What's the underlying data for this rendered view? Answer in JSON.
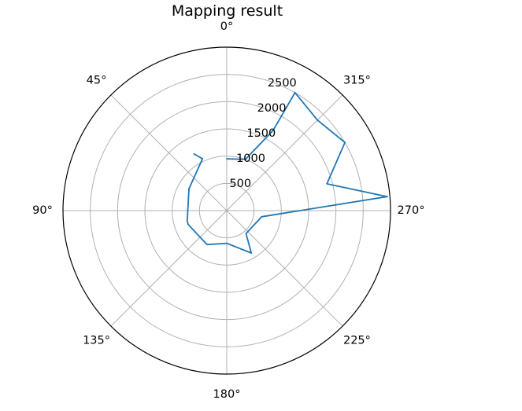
{
  "chart_data": {
    "type": "line",
    "projection": "polar",
    "title": "Mapping result",
    "theta_zero": "top",
    "theta_direction": "counterclockwise",
    "theta_ticks": [
      {
        "angle": 0,
        "label": "0°"
      },
      {
        "angle": 45,
        "label": "45°"
      },
      {
        "angle": 90,
        "label": "90°"
      },
      {
        "angle": 135,
        "label": "135°"
      },
      {
        "angle": 180,
        "label": "180°"
      },
      {
        "angle": 225,
        "label": "225°"
      },
      {
        "angle": 270,
        "label": "270°"
      },
      {
        "angle": 315,
        "label": "315°"
      }
    ],
    "r_ticks": [
      500,
      1000,
      1500,
      2000,
      2500
    ],
    "r_tick_labels": [
      "500",
      "1000",
      "1500",
      "2000",
      "2500"
    ],
    "rlim": [
      0,
      3000
    ],
    "grid": true,
    "series": [
      {
        "color": "#1f77b4",
        "points": [
          {
            "theta": 0,
            "r": 950
          },
          {
            "theta": 340,
            "r": 1000
          },
          {
            "theta": 330,
            "r": 1700
          },
          {
            "theta": 330,
            "r": 2500
          },
          {
            "theta": 315,
            "r": 2350
          },
          {
            "theta": 300,
            "r": 2500
          },
          {
            "theta": 285,
            "r": 1900
          },
          {
            "theta": 275,
            "r": 2950
          },
          {
            "theta": 260,
            "r": 650
          },
          {
            "theta": 220,
            "r": 550
          },
          {
            "theta": 210,
            "r": 900
          },
          {
            "theta": 180,
            "r": 600
          },
          {
            "theta": 150,
            "r": 720
          },
          {
            "theta": 110,
            "r": 750
          },
          {
            "theta": 105,
            "r": 750
          },
          {
            "theta": 60,
            "r": 800
          },
          {
            "theta": 25,
            "r": 1050
          },
          {
            "theta": 30,
            "r": 1200
          }
        ]
      }
    ]
  }
}
